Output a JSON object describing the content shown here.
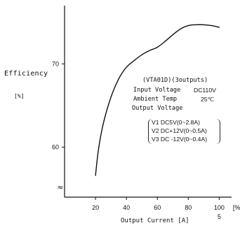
{
  "chart_data": {
    "type": "line",
    "title": "",
    "ylabel": "Efficiency",
    "yunit": "[%]",
    "xlabel": "Output Current",
    "xunit": "[A]",
    "xlim": [
      0,
      108
    ],
    "ylim": [
      54,
      77
    ],
    "y_ticks": [
      60,
      70
    ],
    "x_ticks": [
      20,
      40,
      60,
      80,
      100
    ],
    "x_unit_tick": "[%]",
    "x_secondary_label": "5",
    "axis_break": "≈",
    "grid": false,
    "series": [
      {
        "values": [
          [
            20,
            56.6
          ],
          [
            22,
            59.8
          ],
          [
            25,
            62.8
          ],
          [
            30,
            66.0
          ],
          [
            35,
            68.2
          ],
          [
            40,
            69.6
          ],
          [
            45,
            70.4
          ],
          [
            50,
            71.1
          ],
          [
            55,
            71.6
          ],
          [
            60,
            72.0
          ],
          [
            65,
            72.7
          ],
          [
            70,
            73.5
          ],
          [
            75,
            74.2
          ],
          [
            80,
            74.6
          ],
          [
            85,
            74.7
          ],
          [
            90,
            74.7
          ],
          [
            95,
            74.6
          ],
          [
            100,
            74.4
          ]
        ]
      }
    ],
    "annotation": {
      "model": "(VTA01D)(3outputs)",
      "input_label": "Input Voltage",
      "input_value": "DC110V",
      "ambient_label": "Ambient Temp",
      "ambient_value": "25℃",
      "output_title": "Output Voltage",
      "outputs": [
        "V1 DC5V(0~2.8A)",
        "V2 DC+12V(0~0.5A)",
        "V3 DC -12V(0~0.4A)"
      ]
    }
  }
}
